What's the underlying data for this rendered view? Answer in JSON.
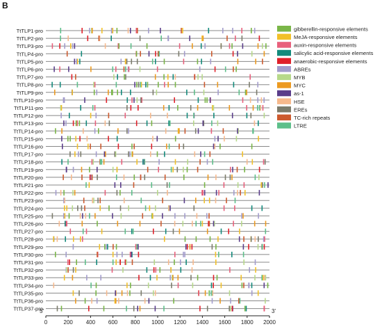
{
  "panel_label": "B",
  "axis": {
    "start_label": "5'",
    "end_label": "3'",
    "ticks": [
      "0",
      "200",
      "400",
      "600",
      "800",
      "1000",
      "1200",
      "1400",
      "1600",
      "1800",
      "2000"
    ],
    "range": [
      0,
      2000
    ]
  },
  "promoters": [
    "TtTLP1-pro",
    "TtTLP2-pro",
    "TtTLP3-pro",
    "TtTLP4-pro",
    "TtTLP5-pro",
    "TtTLP6-pro",
    "TtTLP7-pro",
    "TtTLP8-pro",
    "TtTLP9-pro",
    "TtTLP10-pro",
    "TtTLP11-pro",
    "TtTLP12-pro",
    "TtTLP13-pro",
    "TtTLP14-pro",
    "TtTLP15-pro",
    "TtTLP16-pro",
    "TtTLP17-pro",
    "TtTLP18-pro",
    "TtTLP19-pro",
    "TtTLP20-pro",
    "TtTLP21-pro",
    "TtTLP22-pro",
    "TtTLP23-pro",
    "TtTLP24-pro",
    "TtTLP25-pro",
    "TtTLP26-pro",
    "TtTLP27-pro",
    "TtTLP28-pro",
    "TtTLP29-pro",
    "TtTLP30-pro",
    "TtTLP31-pro",
    "TtTLP32-pro",
    "TtTLP33-pro",
    "TtTLP34-pro",
    "TtTLP35-pro",
    "TtTLP36-pro",
    "TtTLP37-pro"
  ],
  "legend": [
    {
      "label": "gibberellin-responsive elements",
      "color": "#7ab648"
    },
    {
      "label": "MeJA-responsive elements",
      "color": "#f2c028"
    },
    {
      "label": "auxin-responsive elements",
      "color": "#e8607c"
    },
    {
      "label": "salicylic acid-responsive elements",
      "color": "#138a7c"
    },
    {
      "label": "anaerobic-responsive elements",
      "color": "#e0202a"
    },
    {
      "label": "ABREs",
      "color": "#a39ccc"
    },
    {
      "label": "MYB",
      "color": "#b7d98a"
    },
    {
      "label": "MYC",
      "color": "#ec9a20"
    },
    {
      "label": "as-1",
      "color": "#5a3d8a"
    },
    {
      "label": "HSE",
      "color": "#f7b98c"
    },
    {
      "label": "EREs",
      "color": "#7c7c6c"
    },
    {
      "label": "TC-rich repeats",
      "color": "#cc5a2e"
    },
    {
      "label": "LTRE",
      "color": "#5dbf8a"
    }
  ],
  "colors": {
    "backbone": "#888888",
    "axis": "#222222"
  }
}
